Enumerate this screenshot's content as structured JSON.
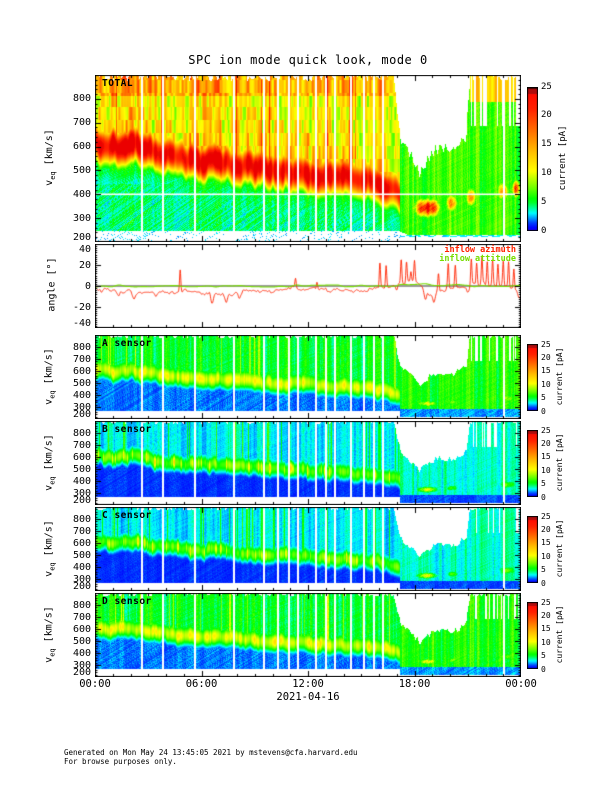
{
  "title": "SPC ion mode quick look, mode 0",
  "footer": {
    "line1": "Generated on Mon May 24 13:45:05 2021 by mstevens@cfa.harvard.edu",
    "line2": "For browse purposes only."
  },
  "x_axis": {
    "ticks": [
      "00:00",
      "06:00",
      "12:00",
      "18:00",
      "00:00"
    ],
    "date": "2021-04-16"
  },
  "ylabels": {
    "velocity_prefix": "v",
    "velocity_sub": "eq",
    "velocity_unit": " [km/s]",
    "angle": "angle [°]"
  },
  "colorbar": {
    "label": "current [pA]",
    "ticks": [
      "25",
      "20",
      "15",
      "10",
      "5",
      "0"
    ]
  },
  "panels": [
    {
      "key": "total",
      "label": "TOTAL",
      "type": "spectrogram",
      "style": "total",
      "yticks": [
        "800",
        "700",
        "600",
        "500",
        "400",
        "300",
        "200"
      ]
    },
    {
      "key": "angle",
      "label": "",
      "type": "line",
      "yticks": [
        "40",
        "20",
        "0",
        "-20",
        "-40"
      ],
      "legend": [
        {
          "label": "inflow azimuth",
          "color": "#ff2200"
        },
        {
          "label": "inflow attitude",
          "color": "#77dd00"
        }
      ]
    },
    {
      "key": "A",
      "label": "A sensor",
      "type": "spectrogram",
      "style": "medium",
      "yticks": [
        "800",
        "700",
        "600",
        "500",
        "400",
        "300",
        "200"
      ]
    },
    {
      "key": "B",
      "label": "B sensor",
      "type": "spectrogram",
      "style": "faint",
      "yticks": [
        "800",
        "700",
        "600",
        "500",
        "400",
        "300",
        "200"
      ]
    },
    {
      "key": "C",
      "label": "C sensor",
      "type": "spectrogram",
      "style": "faint",
      "yticks": [
        "800",
        "700",
        "600",
        "500",
        "400",
        "300",
        "200"
      ]
    },
    {
      "key": "D",
      "label": "D sensor",
      "type": "spectrogram",
      "style": "medium",
      "yticks": [
        "800",
        "700",
        "600",
        "500",
        "400",
        "300",
        "200"
      ]
    }
  ],
  "chart_data": {
    "type": "multi-panel spectrogram + line",
    "date": "2021-04-16",
    "time_range_hours": [
      0,
      24
    ],
    "velocity_range_kms": [
      200,
      900
    ],
    "current_scale_pA": [
      0,
      25
    ],
    "angle_range_deg": [
      -40,
      40
    ],
    "figures": [
      {
        "id": "TOTAL",
        "type": "heatmap",
        "quantity": "current [pA]"
      },
      {
        "id": "angle",
        "type": "line",
        "series_names": [
          "inflow azimuth",
          "inflow attitude"
        ]
      },
      {
        "id": "A sensor",
        "type": "heatmap",
        "quantity": "current [pA]"
      },
      {
        "id": "B sensor",
        "type": "heatmap",
        "quantity": "current [pA]"
      },
      {
        "id": "C sensor",
        "type": "heatmap",
        "quantity": "current [pA]"
      },
      {
        "id": "D sensor",
        "type": "heatmap",
        "quantity": "current [pA]"
      }
    ],
    "peak_velocity_trace_kms": {
      "hours": [
        0,
        1,
        2,
        3,
        4,
        5,
        6,
        7,
        8,
        9,
        10,
        11,
        12,
        13,
        14,
        15,
        16,
        17,
        18,
        19,
        20,
        21,
        22,
        23,
        24
      ],
      "values": [
        620,
        600,
        612,
        585,
        565,
        552,
        542,
        550,
        528,
        515,
        505,
        500,
        492,
        482,
        473,
        463,
        452,
        420,
        332,
        333,
        350,
        368,
        385,
        400,
        388
      ]
    },
    "upper_data_cutoff_kms": {
      "hours": [
        0,
        16.8,
        17.2,
        17.8,
        18.3,
        18.8,
        19.4,
        20.2,
        20.9,
        21.1,
        24
      ],
      "values": [
        900,
        900,
        640,
        560,
        490,
        560,
        600,
        580,
        650,
        900,
        900
      ]
    },
    "lower_data_edge_kms": {
      "hours": [
        0,
        17,
        17.6,
        24
      ],
      "values": [
        250,
        250,
        232,
        232
      ]
    },
    "thin_data_gap_hours": [
      2.6,
      3.8,
      5.6,
      7.8,
      9.5,
      10.3,
      10.9,
      11.4,
      12.4,
      13.0,
      13.5,
      14.4,
      15.1,
      15.7,
      16.2,
      23.0
    ],
    "missing_energy_line_kms": 400,
    "suprathermal_band_kms": [
      250,
      445
    ],
    "slow_wind_red_patches": [
      {
        "hours": [
          17.75,
          19.6
        ],
        "v_kms": [
          300,
          390
        ],
        "peak_pA": 25
      },
      {
        "hours": [
          19.6,
          20.5
        ],
        "v_kms": [
          320,
          410
        ],
        "peak_pA": 15
      },
      {
        "hours": [
          20.8,
          21.5
        ],
        "v_kms": [
          340,
          440
        ],
        "peak_pA": 17
      },
      {
        "hours": [
          22.5,
          23.4
        ],
        "v_kms": [
          370,
          460
        ],
        "peak_pA": 15
      },
      {
        "hours": [
          23.4,
          24.0
        ],
        "v_kms": [
          380,
          470
        ],
        "peak_pA": 21
      }
    ],
    "sensor_slow_band_patches": [
      {
        "hours": [
          17.8,
          19.6
        ],
        "v_kms": [
          300,
          365
        ],
        "peak_pA": 11
      },
      {
        "hours": [
          19.6,
          20.6
        ],
        "v_kms": [
          310,
          380
        ],
        "peak_pA": 8
      },
      {
        "hours": [
          22.4,
          24.0
        ],
        "v_kms": [
          330,
          420
        ],
        "peak_pA": 8
      }
    ],
    "angle_series": {
      "azimuth": {
        "name": "inflow azimuth",
        "color": "#ff2200",
        "hours": [
          0,
          1,
          2,
          3,
          4,
          5,
          6,
          7,
          8,
          9,
          10,
          11,
          12,
          13,
          14,
          15,
          16,
          17,
          18,
          19,
          20,
          21,
          22,
          23,
          24
        ],
        "values": [
          -2,
          -5,
          -6,
          -5,
          -6,
          -5,
          -7,
          -8,
          -6,
          -5,
          -4,
          -3,
          -2,
          -3,
          -4,
          -4,
          -3,
          2,
          6,
          -9,
          -2,
          1,
          1,
          -2,
          -6
        ]
      },
      "attitude": {
        "name": "inflow attitude",
        "color": "#77dd00",
        "hours": [
          0,
          6,
          12,
          17,
          18.5,
          20,
          24
        ],
        "values": [
          0,
          0,
          0,
          0.5,
          2,
          0.5,
          0
        ]
      },
      "azimuth_spikes_hour_amp": [
        [
          4.8,
          22
        ],
        [
          11.3,
          8
        ],
        [
          12.5,
          7
        ],
        [
          16.05,
          25
        ],
        [
          16.4,
          22
        ],
        [
          17.25,
          22
        ],
        [
          17.55,
          20
        ],
        [
          17.8,
          10
        ],
        [
          18.0,
          18
        ],
        [
          19.35,
          16
        ],
        [
          19.9,
          23
        ],
        [
          20.3,
          20
        ],
        [
          21.2,
          24
        ],
        [
          21.5,
          21
        ],
        [
          21.8,
          26
        ],
        [
          22.1,
          22
        ],
        [
          22.4,
          25
        ],
        [
          22.7,
          21
        ],
        [
          23.0,
          24
        ],
        [
          23.3,
          25
        ],
        [
          23.6,
          20
        ]
      ],
      "azimuth_dips_hour_delta": [
        [
          1.3,
          -5
        ],
        [
          2.2,
          -5
        ],
        [
          3.4,
          -4
        ],
        [
          6.6,
          -9
        ],
        [
          7.4,
          -9
        ],
        [
          8.15,
          -7
        ],
        [
          17.0,
          -5
        ],
        [
          18.6,
          -8
        ],
        [
          19.1,
          -7
        ],
        [
          21.0,
          -5
        ],
        [
          23.9,
          -6
        ]
      ]
    }
  }
}
